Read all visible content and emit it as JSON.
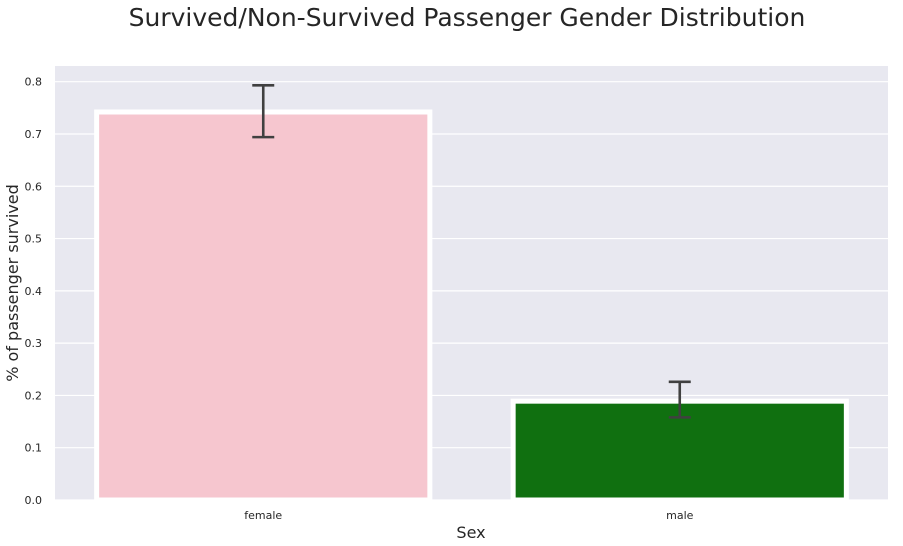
{
  "chart_data": {
    "type": "bar",
    "title": "Survived/Non-Survived Passenger Gender Distribution",
    "xlabel": "Sex",
    "ylabel": "% of passenger survived",
    "categories": [
      "female",
      "male"
    ],
    "values": [
      0.742,
      0.189
    ],
    "error_bars": [
      {
        "low": 0.694,
        "high": 0.793
      },
      {
        "low": 0.158,
        "high": 0.226
      }
    ],
    "bar_colors": [
      "#f6c6cf",
      "#107010"
    ],
    "error_bar_color": "#404040",
    "background_color": "#e8e8f0",
    "grid_color": "#ffffff",
    "ylim": [
      0,
      0.83
    ],
    "yticks": [
      0.0,
      0.1,
      0.2,
      0.3,
      0.4,
      0.5,
      0.6,
      0.7,
      0.8
    ],
    "ytick_labels": [
      "0.0",
      "0.1",
      "0.2",
      "0.3",
      "0.4",
      "0.5",
      "0.6",
      "0.7",
      "0.8"
    ],
    "grid": true,
    "legend": false
  }
}
